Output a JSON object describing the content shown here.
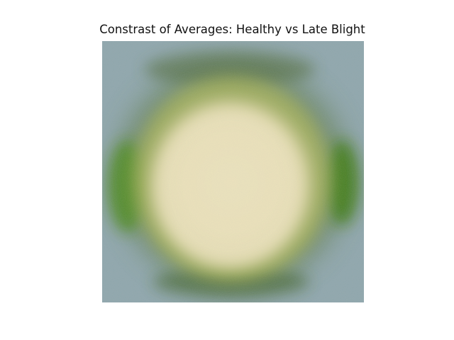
{
  "figure": {
    "title": "Constrast of Averages: Healthy vs Late Blight"
  },
  "image": {
    "depicts": "averaged-leaf-contrast",
    "colors": {
      "background": "#8fa6ae",
      "center": "#ece4b8",
      "ring_green": "#4f7d1c",
      "ring_dark": "#3f5f2a"
    }
  }
}
